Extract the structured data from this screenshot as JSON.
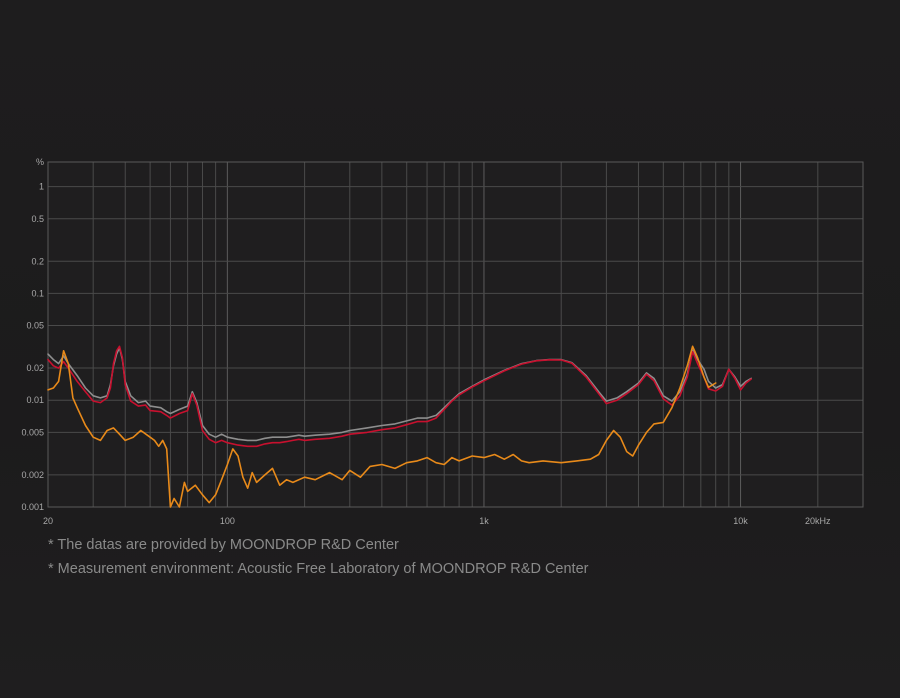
{
  "notes": [
    "* The datas are provided by MOONDROP R&D Center",
    "* Measurement environment: Acoustic Free Laboratory of MOONDROP R&D Center"
  ],
  "chart_data": {
    "type": "line",
    "title": "",
    "xlabel": "",
    "ylabel": "",
    "x_scale": "log",
    "y_scale": "log",
    "xlim": [
      20,
      30000
    ],
    "ylim": [
      0.001,
      1.7
    ],
    "grid": true,
    "y_unit_label": "%",
    "x_ticks": [
      {
        "value": 20,
        "label": "20"
      },
      {
        "value": 100,
        "label": "100"
      },
      {
        "value": 1000,
        "label": "1k"
      },
      {
        "value": 10000,
        "label": "10k"
      },
      {
        "value": 20000,
        "label": "20kHz"
      }
    ],
    "y_ticks": [
      {
        "value": 1,
        "label": "1"
      },
      {
        "value": 0.5,
        "label": "0.5"
      },
      {
        "value": 0.2,
        "label": "0.2"
      },
      {
        "value": 0.1,
        "label": "0.1"
      },
      {
        "value": 0.05,
        "label": "0.05"
      },
      {
        "value": 0.02,
        "label": "0.02"
      },
      {
        "value": 0.01,
        "label": "0.01"
      },
      {
        "value": 0.005,
        "label": "0.005"
      },
      {
        "value": 0.002,
        "label": "0.002"
      },
      {
        "value": 0.001,
        "label": "0.001"
      }
    ],
    "x_gridlines": [
      20,
      30,
      40,
      50,
      60,
      70,
      80,
      90,
      100,
      200,
      300,
      400,
      500,
      600,
      700,
      800,
      900,
      1000,
      2000,
      3000,
      4000,
      5000,
      6000,
      7000,
      8000,
      9000,
      10000,
      20000,
      30000
    ],
    "series": [
      {
        "color": "#8e8e8e",
        "points": [
          [
            20,
            0.027
          ],
          [
            21,
            0.024
          ],
          [
            22,
            0.022
          ],
          [
            23,
            0.026
          ],
          [
            24,
            0.022
          ],
          [
            26,
            0.017
          ],
          [
            28,
            0.013
          ],
          [
            30,
            0.011
          ],
          [
            32,
            0.0105
          ],
          [
            34,
            0.011
          ],
          [
            35,
            0.014
          ],
          [
            36,
            0.021
          ],
          [
            37,
            0.027
          ],
          [
            38,
            0.031
          ],
          [
            39,
            0.024
          ],
          [
            40,
            0.015
          ],
          [
            42,
            0.011
          ],
          [
            45,
            0.0095
          ],
          [
            48,
            0.0098
          ],
          [
            50,
            0.0088
          ],
          [
            55,
            0.0085
          ],
          [
            58,
            0.0078
          ],
          [
            60,
            0.0075
          ],
          [
            65,
            0.0082
          ],
          [
            70,
            0.0088
          ],
          [
            73,
            0.012
          ],
          [
            76,
            0.0095
          ],
          [
            80,
            0.0058
          ],
          [
            85,
            0.0048
          ],
          [
            90,
            0.0045
          ],
          [
            95,
            0.0048
          ],
          [
            100,
            0.0045
          ],
          [
            110,
            0.0043
          ],
          [
            120,
            0.0042
          ],
          [
            130,
            0.0042
          ],
          [
            140,
            0.0044
          ],
          [
            150,
            0.0045
          ],
          [
            160,
            0.0045
          ],
          [
            170,
            0.0045
          ],
          [
            180,
            0.0046
          ],
          [
            190,
            0.0047
          ],
          [
            200,
            0.0046
          ],
          [
            220,
            0.0047
          ],
          [
            250,
            0.0048
          ],
          [
            280,
            0.005
          ],
          [
            300,
            0.0052
          ],
          [
            350,
            0.0055
          ],
          [
            400,
            0.0058
          ],
          [
            450,
            0.006
          ],
          [
            500,
            0.0064
          ],
          [
            550,
            0.0068
          ],
          [
            600,
            0.0068
          ],
          [
            650,
            0.0072
          ],
          [
            700,
            0.0085
          ],
          [
            750,
            0.01
          ],
          [
            800,
            0.0115
          ],
          [
            900,
            0.0135
          ],
          [
            1000,
            0.0155
          ],
          [
            1200,
            0.019
          ],
          [
            1400,
            0.022
          ],
          [
            1600,
            0.0235
          ],
          [
            1800,
            0.024
          ],
          [
            2000,
            0.024
          ],
          [
            2200,
            0.0225
          ],
          [
            2500,
            0.017
          ],
          [
            2800,
            0.012
          ],
          [
            3000,
            0.0098
          ],
          [
            3300,
            0.0105
          ],
          [
            3600,
            0.012
          ],
          [
            4000,
            0.0145
          ],
          [
            4300,
            0.018
          ],
          [
            4600,
            0.016
          ],
          [
            5000,
            0.011
          ],
          [
            5400,
            0.0098
          ],
          [
            5800,
            0.012
          ],
          [
            6200,
            0.0175
          ],
          [
            6500,
            0.0295
          ],
          [
            6800,
            0.024
          ],
          [
            7200,
            0.0195
          ],
          [
            7500,
            0.015
          ],
          [
            8000,
            0.013
          ],
          [
            8500,
            0.014
          ],
          [
            9000,
            0.0195
          ],
          [
            9500,
            0.0165
          ],
          [
            10000,
            0.0135
          ],
          [
            10500,
            0.015
          ],
          [
            11000,
            0.016
          ]
        ]
      },
      {
        "color": "#c8102e",
        "points": [
          [
            20,
            0.024
          ],
          [
            21,
            0.021
          ],
          [
            22,
            0.02
          ],
          [
            23,
            0.023
          ],
          [
            24,
            0.02
          ],
          [
            26,
            0.015
          ],
          [
            28,
            0.012
          ],
          [
            30,
            0.0098
          ],
          [
            32,
            0.0095
          ],
          [
            34,
            0.0105
          ],
          [
            35,
            0.013
          ],
          [
            36,
            0.022
          ],
          [
            37,
            0.029
          ],
          [
            38,
            0.032
          ],
          [
            39,
            0.025
          ],
          [
            40,
            0.014
          ],
          [
            42,
            0.0098
          ],
          [
            45,
            0.0088
          ],
          [
            48,
            0.009
          ],
          [
            50,
            0.008
          ],
          [
            55,
            0.0078
          ],
          [
            58,
            0.0072
          ],
          [
            60,
            0.0068
          ],
          [
            65,
            0.0075
          ],
          [
            70,
            0.008
          ],
          [
            73,
            0.0115
          ],
          [
            76,
            0.009
          ],
          [
            80,
            0.0052
          ],
          [
            85,
            0.0043
          ],
          [
            90,
            0.004
          ],
          [
            95,
            0.0042
          ],
          [
            100,
            0.004
          ],
          [
            110,
            0.0038
          ],
          [
            120,
            0.0037
          ],
          [
            130,
            0.0037
          ],
          [
            140,
            0.0039
          ],
          [
            150,
            0.004
          ],
          [
            160,
            0.004
          ],
          [
            170,
            0.0041
          ],
          [
            180,
            0.0042
          ],
          [
            190,
            0.0043
          ],
          [
            200,
            0.0042
          ],
          [
            220,
            0.0043
          ],
          [
            250,
            0.0044
          ],
          [
            280,
            0.0046
          ],
          [
            300,
            0.0048
          ],
          [
            350,
            0.005
          ],
          [
            400,
            0.0053
          ],
          [
            450,
            0.0055
          ],
          [
            500,
            0.0059
          ],
          [
            550,
            0.0063
          ],
          [
            600,
            0.0063
          ],
          [
            650,
            0.0068
          ],
          [
            700,
            0.0082
          ],
          [
            750,
            0.0098
          ],
          [
            800,
            0.0112
          ],
          [
            900,
            0.0133
          ],
          [
            1000,
            0.0152
          ],
          [
            1200,
            0.0188
          ],
          [
            1400,
            0.0218
          ],
          [
            1600,
            0.0234
          ],
          [
            1800,
            0.0239
          ],
          [
            2000,
            0.0238
          ],
          [
            2200,
            0.0222
          ],
          [
            2500,
            0.0165
          ],
          [
            2800,
            0.0115
          ],
          [
            3000,
            0.0093
          ],
          [
            3300,
            0.01
          ],
          [
            3600,
            0.0115
          ],
          [
            4000,
            0.014
          ],
          [
            4300,
            0.0175
          ],
          [
            4600,
            0.0152
          ],
          [
            5000,
            0.0103
          ],
          [
            5400,
            0.009
          ],
          [
            5800,
            0.011
          ],
          [
            6200,
            0.0165
          ],
          [
            6500,
            0.0285
          ],
          [
            6800,
            0.022
          ],
          [
            7200,
            0.0165
          ],
          [
            7500,
            0.0128
          ],
          [
            8000,
            0.0122
          ],
          [
            8500,
            0.0135
          ],
          [
            9000,
            0.0195
          ],
          [
            9500,
            0.016
          ],
          [
            10000,
            0.0125
          ],
          [
            10500,
            0.0145
          ],
          [
            11000,
            0.0158
          ]
        ]
      },
      {
        "color": "#e88a1a",
        "points": [
          [
            20,
            0.0125
          ],
          [
            21,
            0.013
          ],
          [
            22,
            0.015
          ],
          [
            23,
            0.029
          ],
          [
            24,
            0.022
          ],
          [
            25,
            0.0105
          ],
          [
            26,
            0.0085
          ],
          [
            28,
            0.0058
          ],
          [
            30,
            0.0045
          ],
          [
            32,
            0.0042
          ],
          [
            34,
            0.0052
          ],
          [
            36,
            0.0055
          ],
          [
            38,
            0.0048
          ],
          [
            40,
            0.0042
          ],
          [
            43,
            0.0045
          ],
          [
            46,
            0.0052
          ],
          [
            50,
            0.0045
          ],
          [
            52,
            0.0042
          ],
          [
            54,
            0.0037
          ],
          [
            56,
            0.0042
          ],
          [
            58,
            0.0035
          ],
          [
            60,
            0.001
          ],
          [
            62,
            0.0012
          ],
          [
            65,
            0.0009
          ],
          [
            68,
            0.0017
          ],
          [
            70,
            0.0014
          ],
          [
            75,
            0.0016
          ],
          [
            80,
            0.0013
          ],
          [
            85,
            0.0011
          ],
          [
            90,
            0.0013
          ],
          [
            95,
            0.0018
          ],
          [
            100,
            0.0025
          ],
          [
            105,
            0.0035
          ],
          [
            110,
            0.003
          ],
          [
            115,
            0.0019
          ],
          [
            120,
            0.0015
          ],
          [
            125,
            0.0021
          ],
          [
            130,
            0.0017
          ],
          [
            140,
            0.002
          ],
          [
            150,
            0.0023
          ],
          [
            160,
            0.0016
          ],
          [
            170,
            0.0018
          ],
          [
            180,
            0.0017
          ],
          [
            200,
            0.0019
          ],
          [
            220,
            0.0018
          ],
          [
            250,
            0.0021
          ],
          [
            280,
            0.0018
          ],
          [
            300,
            0.0022
          ],
          [
            330,
            0.0019
          ],
          [
            360,
            0.0024
          ],
          [
            400,
            0.0025
          ],
          [
            450,
            0.0023
          ],
          [
            500,
            0.0026
          ],
          [
            550,
            0.0027
          ],
          [
            600,
            0.0029
          ],
          [
            650,
            0.0026
          ],
          [
            700,
            0.0025
          ],
          [
            750,
            0.0029
          ],
          [
            800,
            0.0027
          ],
          [
            900,
            0.003
          ],
          [
            1000,
            0.0029
          ],
          [
            1100,
            0.0031
          ],
          [
            1200,
            0.0028
          ],
          [
            1300,
            0.0031
          ],
          [
            1400,
            0.0027
          ],
          [
            1500,
            0.0026
          ],
          [
            1700,
            0.0027
          ],
          [
            2000,
            0.0026
          ],
          [
            2300,
            0.0027
          ],
          [
            2600,
            0.0028
          ],
          [
            2800,
            0.0031
          ],
          [
            3000,
            0.0042
          ],
          [
            3200,
            0.0052
          ],
          [
            3400,
            0.0045
          ],
          [
            3600,
            0.0033
          ],
          [
            3800,
            0.003
          ],
          [
            4000,
            0.0038
          ],
          [
            4300,
            0.005
          ],
          [
            4600,
            0.006
          ],
          [
            5000,
            0.0062
          ],
          [
            5400,
            0.0085
          ],
          [
            5800,
            0.013
          ],
          [
            6200,
            0.021
          ],
          [
            6500,
            0.032
          ],
          [
            6800,
            0.025
          ],
          [
            7200,
            0.0165
          ],
          [
            7500,
            0.0132
          ],
          [
            8000,
            0.0145
          ]
        ]
      }
    ]
  }
}
